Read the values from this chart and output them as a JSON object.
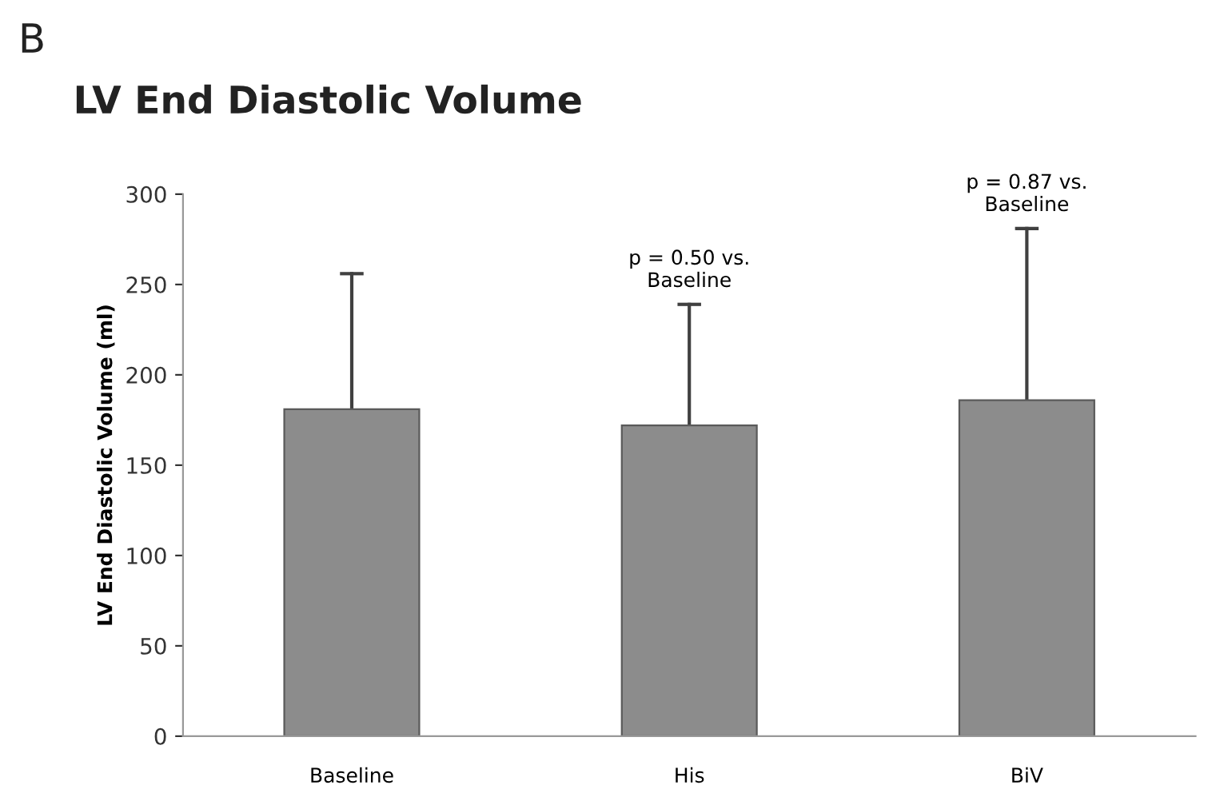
{
  "chart_data": {
    "type": "bar",
    "title": "LV End Diastolic Volume",
    "ylabel": "LV End Diastolic Volume (ml)",
    "categories": [
      "Baseline",
      "His",
      "BiV"
    ],
    "series": [
      {
        "color": "#8c8c8c",
        "values": [
          181,
          172,
          186
        ],
        "errors": [
          [
            181,
            256
          ],
          [
            172,
            239
          ],
          [
            186,
            281
          ]
        ]
      }
    ],
    "ylim": [
      0,
      300
    ],
    "yticks": [
      0,
      50,
      100,
      150,
      200,
      250,
      300
    ],
    "grid": false,
    "legend": false,
    "annotations": [
      "B",
      {
        "text": "p = 0.50 vs.\nBaseline",
        "x": "His",
        "y": 239
      },
      {
        "text": "p = 0.87 vs.\nBaseline",
        "x": "BiV",
        "y": 281
      }
    ]
  }
}
